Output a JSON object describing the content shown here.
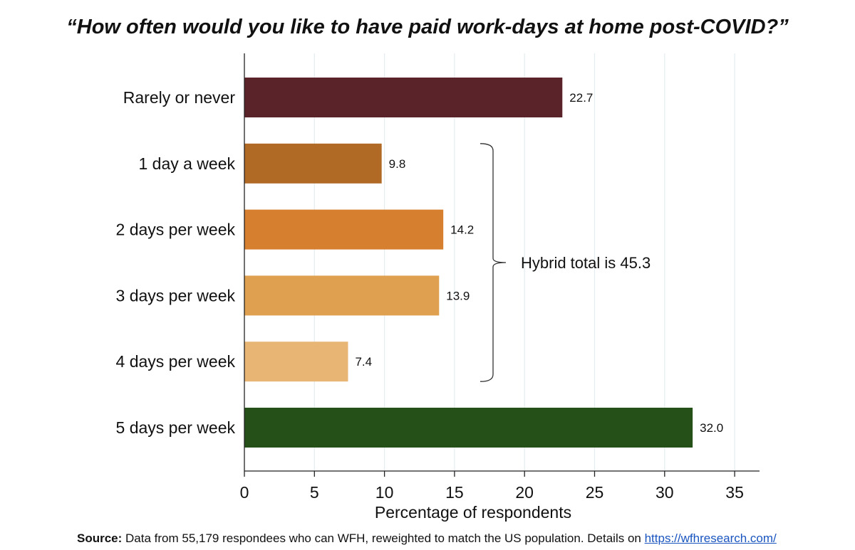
{
  "chart_data": {
    "type": "bar",
    "orientation": "horizontal",
    "title": "“How often would you like to have paid work-days at home post-COVID?”",
    "xlabel": "Percentage of respondents",
    "ylabel": "",
    "xlim": [
      0,
      37
    ],
    "xticks": [
      0,
      5,
      10,
      15,
      20,
      25,
      30,
      35
    ],
    "grid": "vertical",
    "categories": [
      "Rarely or never",
      "1 day a week",
      "2 days per week",
      "3 days per week",
      "4 days per week",
      "5 days per week"
    ],
    "values": [
      22.7,
      9.8,
      14.2,
      13.9,
      7.4,
      32.0
    ],
    "value_labels": [
      "22.7",
      "9.8",
      "14.2",
      "13.9",
      "7.4",
      "32.0"
    ],
    "colors": [
      "#5a2329",
      "#b06a26",
      "#d57f2f",
      "#dfa04f",
      "#e8b574",
      "#255018"
    ],
    "annotation": {
      "text": "Hybrid total is 45.3",
      "brace_from": "1 day a week",
      "brace_to": "4 days per week"
    }
  },
  "source": {
    "label": "Source:",
    "text": " Data from 55,179 respondees who can WFH, reweighted to match the US population. Details on ",
    "link": "https://wfhresearch.com/"
  }
}
